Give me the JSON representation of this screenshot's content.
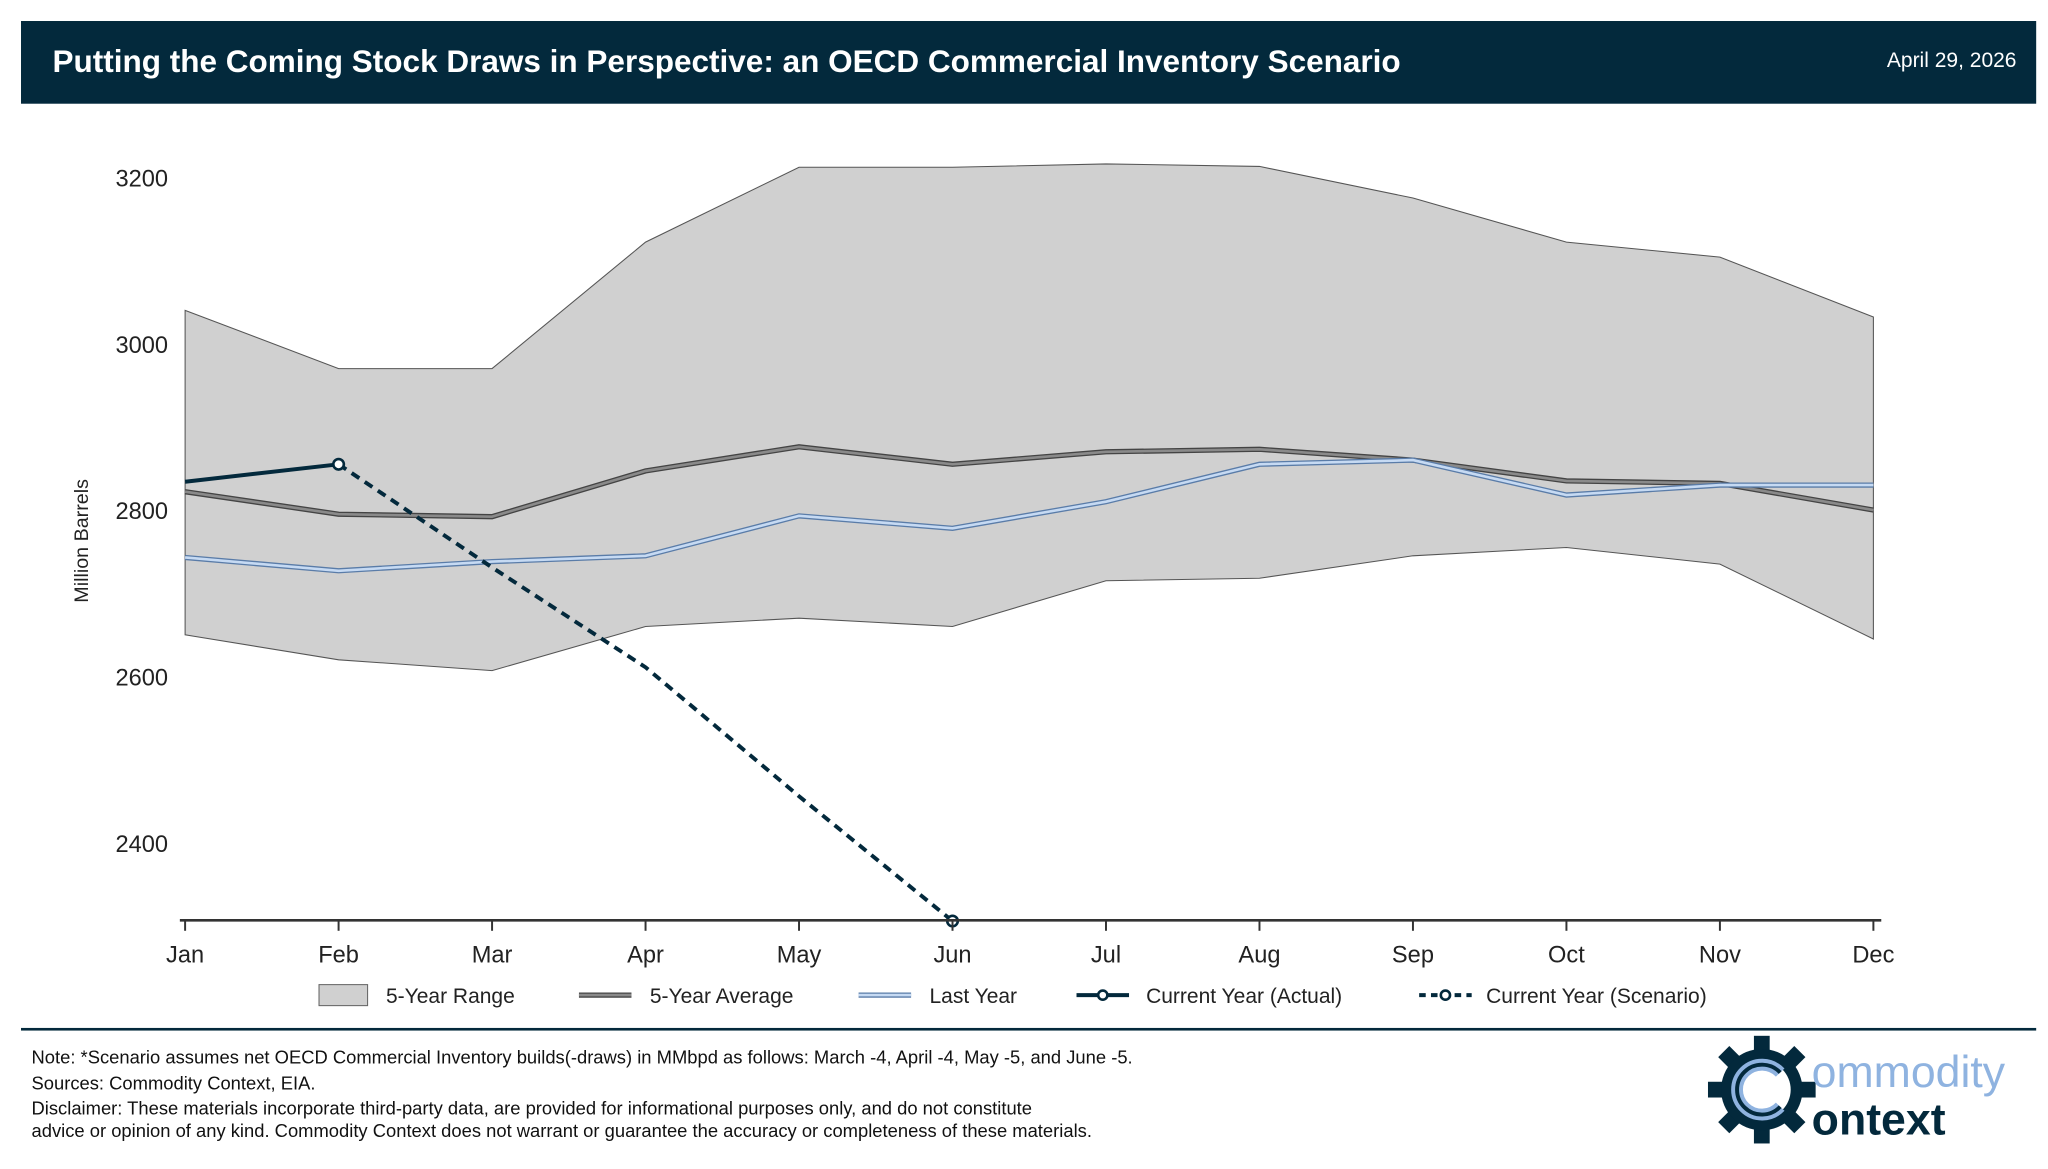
{
  "header": {
    "title": "Putting the Coming Stock Draws in Perspective: an OECD Commercial Inventory Scenario",
    "date": "April 29, 2026"
  },
  "chart_data": {
    "type": "line",
    "title": "Putting the Coming Stock Draws in Perspective: an OECD Commercial Inventory Scenario",
    "xlabel": "",
    "ylabel": "Million Barrels",
    "categories": [
      "Jan",
      "Feb",
      "Mar",
      "Apr",
      "May",
      "Jun",
      "Jul",
      "Aug",
      "Sep",
      "Oct",
      "Nov",
      "Dec"
    ],
    "yticks": [
      2400,
      2600,
      2800,
      3000,
      3200
    ],
    "ylim": [
      2307,
      3260
    ],
    "grid": false,
    "legend_position": "bottom",
    "range": {
      "name": "5-Year Range",
      "upper": [
        3040,
        2970,
        2970,
        3122,
        3212,
        3212,
        3216,
        3213,
        3175,
        3122,
        3104,
        3032
      ],
      "lower": [
        2650,
        2620,
        2607,
        2660,
        2670,
        2660,
        2715,
        2718,
        2745,
        2755,
        2735,
        2645
      ]
    },
    "series": [
      {
        "name": "5-Year Average",
        "values": [
          2822,
          2795,
          2792,
          2847,
          2876,
          2855,
          2870,
          2873,
          2860,
          2835,
          2832,
          2800
        ]
      },
      {
        "name": "Last Year",
        "values": [
          2743,
          2727,
          2738,
          2745,
          2793,
          2778,
          2810,
          2855,
          2860,
          2818,
          2830,
          2830
        ]
      },
      {
        "name": "Current Year (Actual)",
        "values": [
          2834,
          2855,
          null,
          null,
          null,
          null,
          null,
          null,
          null,
          null,
          null,
          null
        ]
      },
      {
        "name": "Current Year (Scenario)",
        "values": [
          null,
          2855,
          2731,
          2611,
          2456,
          2306,
          null,
          null,
          null,
          null,
          null,
          null
        ]
      }
    ],
    "colors": {
      "range": "#d0d0d0",
      "average": "#6b6b6b",
      "last_year": "#8fb3e0",
      "current": "#03293c"
    }
  },
  "notes": {
    "note": "Note: *Scenario assumes net OECD Commercial Inventory builds(-draws) in MMbpd as follows: March -4, April -4, May -5, and June -5.",
    "sources": "Sources: Commodity Context, EIA.",
    "disclaimer1": "Disclaimer: These materials incorporate third-party data, are provided for informational purposes only, and do not constitute",
    "disclaimer2": "advice or opinion of any kind. Commodity Context does not warrant or guarantee the accuracy or completeness of these materials."
  },
  "logo": {
    "line1": "ommodity",
    "line2": "ontext"
  }
}
